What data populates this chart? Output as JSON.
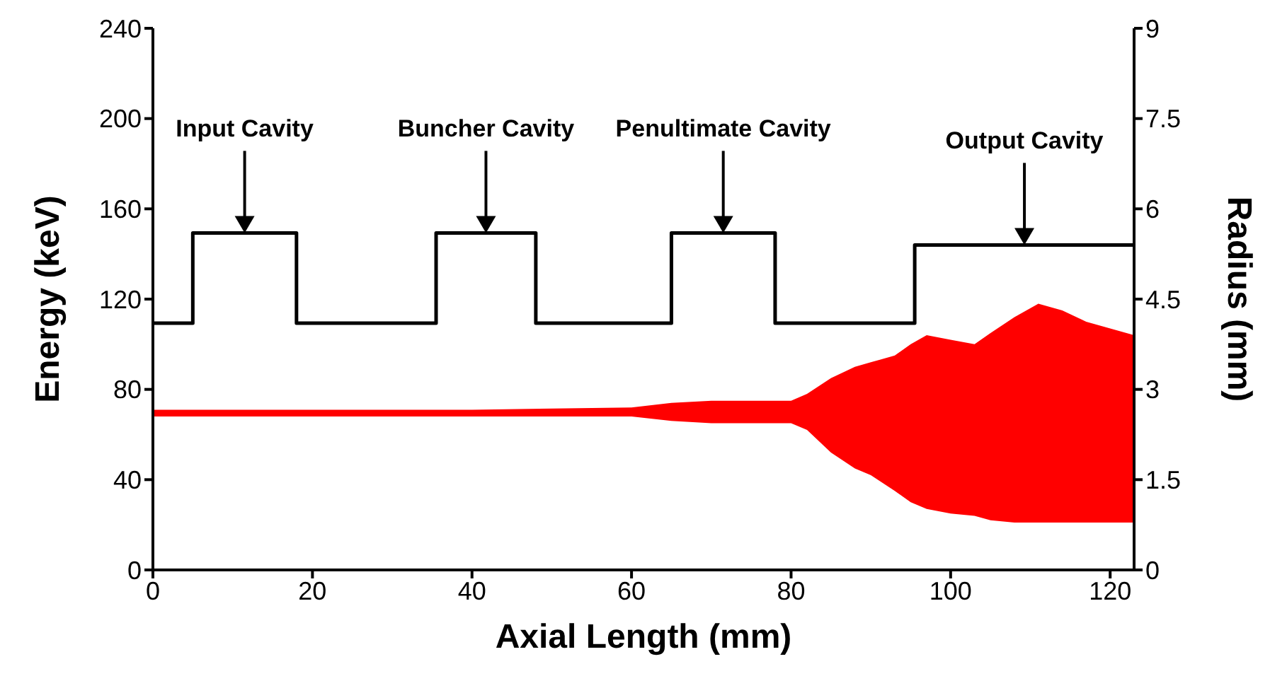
{
  "chart_data": {
    "type": "area",
    "xlabel": "Axial Length (mm)",
    "ylabel": "Energy (keV)",
    "y2label": "Radius (mm)",
    "xlim": [
      0,
      123
    ],
    "xticks": [
      0,
      20,
      40,
      60,
      80,
      100,
      120
    ],
    "ylim": [
      0,
      240
    ],
    "yticks": [
      0,
      40,
      80,
      120,
      160,
      200,
      240
    ],
    "y2lim": [
      0,
      9
    ],
    "y2ticks": [
      0,
      1.5,
      3,
      4.5,
      6,
      7.5,
      9
    ],
    "legend": false,
    "grid": false,
    "marker": "none",
    "line_style": "solid",
    "series": [
      {
        "color": "#ff0000",
        "values": [
          null,
          null,
          null,
          null,
          null,
          null,
          null,
          null,
          null,
          null,
          null,
          null,
          null,
          null,
          null,
          null,
          null,
          null,
          null,
          null,
          null,
          null,
          null,
          null
        ],
        "x": [
          0,
          20,
          40,
          60,
          65,
          70,
          75,
          80,
          82,
          85,
          88,
          90,
          93,
          95,
          97,
          100,
          103,
          105,
          108,
          111,
          114,
          117,
          120,
          123
        ],
        "lower": [
          68,
          68,
          68,
          68,
          66,
          65,
          65,
          65,
          62,
          52,
          45,
          42,
          35,
          30,
          27,
          25,
          24,
          22,
          21,
          21,
          21,
          21,
          21,
          21
        ],
        "upper": [
          71,
          71,
          71,
          72,
          74,
          75,
          75,
          75,
          78,
          85,
          90,
          92,
          95,
          100,
          104,
          102,
          100,
          105,
          112,
          118,
          115,
          110,
          107,
          104
        ]
      },
      {
        "type": "step",
        "axis": "y2",
        "color": "#000000",
        "x": [
          0,
          5,
          18,
          35.5,
          48,
          65,
          78,
          95.5,
          123
        ],
        "values": [
          4.1,
          5.6,
          4.1,
          5.6,
          4.1,
          5.6,
          4.1,
          5.4,
          5.4
        ]
      }
    ],
    "annotations": [
      "Input Cavity",
      "Buncher Cavity",
      "Penultimate Cavity",
      "Output Cavity"
    ]
  }
}
